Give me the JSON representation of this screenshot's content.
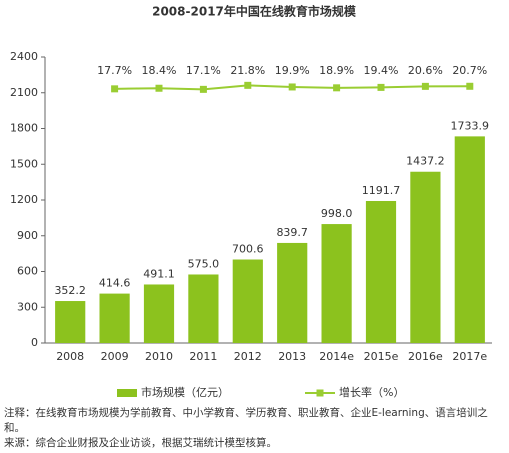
{
  "chart_data": {
    "type": "bar_line",
    "title": "2008-2017年中国在线教育市场规模",
    "categories": [
      "2008",
      "2009",
      "2010",
      "2011",
      "2012",
      "2013",
      "2014e",
      "2015e",
      "2016e",
      "2017e"
    ],
    "series": [
      {
        "name": "市场规模（亿元）",
        "color": "#8cc21e",
        "values": [
          352.2,
          414.6,
          491.1,
          575.0,
          700.6,
          839.7,
          998.0,
          1191.7,
          1437.2,
          1733.9
        ],
        "value_labels": [
          "352.2",
          "414.6",
          "491.1",
          "575.0",
          "700.6",
          "839.7",
          "998.0",
          "1191.7",
          "1437.2",
          "1733.9"
        ]
      },
      {
        "name": "增长率（%）",
        "color": "#9acd32",
        "axis": "y2",
        "values": [
          null,
          17.7,
          18.4,
          17.1,
          21.8,
          19.9,
          18.9,
          19.4,
          20.6,
          20.7
        ],
        "value_labels": [
          null,
          "17.7%",
          "18.4%",
          "17.1%",
          "21.8%",
          "19.9%",
          "18.9%",
          "19.4%",
          "20.6%",
          "20.7%"
        ]
      }
    ],
    "ylim": [
      0,
      2400
    ],
    "yticks": [
      0,
      300,
      600,
      900,
      1200,
      1500,
      1800,
      2100,
      2400
    ],
    "y2lim": [
      -280,
      55
    ],
    "notes": [
      "注释：在线教育市场规模为学前教育、中小学教育、学历教育、职业教育、企业E-learning、语言培训之和。",
      "来源：综合企业财报及企业访谈，根据艾瑞统计模型核算。"
    ]
  }
}
